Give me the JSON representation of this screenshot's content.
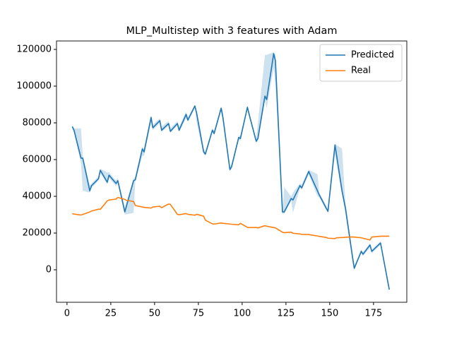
{
  "chart_data": {
    "type": "line",
    "title": "MLP_Multistep with 3 features with Adam",
    "xlim": [
      -6,
      194
    ],
    "xticks": [
      0,
      25,
      50,
      75,
      100,
      125,
      150,
      175
    ],
    "ylim": [
      -17700,
      124600
    ],
    "yticks": [
      0,
      20000,
      40000,
      60000,
      80000,
      100000,
      120000
    ],
    "legend": "upper right",
    "series": [
      {
        "name": "Predicted",
        "color": "#1f77b4",
        "band_color": "#1f77b4",
        "x": [
          3,
          4,
          8,
          9,
          13,
          14,
          18,
          19,
          23,
          24,
          28,
          29,
          33,
          38,
          39,
          43,
          44,
          48,
          49,
          53,
          54,
          58,
          59,
          63,
          64,
          68,
          69,
          73,
          74,
          78,
          79,
          83,
          84,
          88,
          89,
          93,
          94,
          98,
          99,
          103,
          104,
          108,
          109,
          113,
          114,
          118,
          119,
          123,
          124,
          128,
          129,
          133,
          134,
          138,
          143,
          144,
          148,
          149,
          153,
          157,
          159,
          163,
          164,
          168,
          169,
          173,
          174,
          179,
          184
        ],
        "values": [
          78000,
          76000,
          60800,
          60800,
          43000,
          45800,
          49600,
          54200,
          47700,
          51500,
          47000,
          48500,
          31500,
          48500,
          49000,
          65800,
          64200,
          83000,
          77300,
          81200,
          76000,
          79600,
          75400,
          79600,
          76000,
          84600,
          81500,
          89200,
          85400,
          64200,
          63000,
          76000,
          74200,
          88000,
          83000,
          54600,
          56200,
          72000,
          71500,
          88500,
          84600,
          70000,
          71500,
          94600,
          92700,
          117700,
          113800,
          31500,
          31500,
          38800,
          38000,
          45800,
          44600,
          53500,
          43000,
          40800,
          33500,
          31900,
          68000,
          43000,
          33500,
          7000,
          800,
          10000,
          8500,
          13500,
          10000,
          14600,
          -10800
        ],
        "lower": [
          77000,
          74500,
          58000,
          43000,
          42000,
          44500,
          48500,
          52500,
          46500,
          50000,
          45500,
          47000,
          30000,
          31000,
          48000,
          62000,
          62000,
          80000,
          76000,
          80000,
          75000,
          78500,
          74500,
          78500,
          75000,
          82500,
          80500,
          88000,
          80000,
          63000,
          62000,
          75000,
          73000,
          86500,
          82000,
          53500,
          55000,
          70500,
          70500,
          87000,
          83500,
          69000,
          70000,
          92000,
          88000,
          110000,
          100000,
          30500,
          30500,
          37500,
          31000,
          44500,
          43500,
          52000,
          40000,
          39500,
          32500,
          30500,
          63000,
          41000,
          30000,
          4000,
          0,
          9000,
          7500,
          12000,
          9000,
          13500,
          -11500
        ],
        "upper": [
          79000,
          77000,
          77000,
          62000,
          46000,
          47000,
          51000,
          55000,
          53000,
          53000,
          48500,
          50000,
          34000,
          49500,
          51000,
          67000,
          66000,
          84000,
          79000,
          82500,
          78000,
          81000,
          77000,
          81000,
          78000,
          86000,
          83000,
          90000,
          86500,
          66000,
          64500,
          77000,
          76000,
          89000,
          86000,
          56000,
          58000,
          73000,
          73000,
          89500,
          86000,
          71500,
          80000,
          117000,
          117000,
          118500,
          117000,
          33000,
          45000,
          40000,
          42000,
          47000,
          46500,
          54500,
          52000,
          42000,
          35000,
          33000,
          68500,
          66000,
          36000,
          8000,
          2000,
          11000,
          9500,
          14500,
          11000,
          15500,
          -10000
        ]
      },
      {
        "name": "Real",
        "color": "#ff7f0e",
        "x": [
          3,
          8,
          13,
          14,
          18,
          19,
          23,
          24,
          28,
          29,
          33,
          34,
          38,
          39,
          43,
          44,
          48,
          49,
          53,
          54,
          58,
          59,
          63,
          64,
          68,
          69,
          73,
          74,
          78,
          79,
          83,
          84,
          88,
          89,
          93,
          94,
          98,
          99,
          103,
          104,
          108,
          109,
          113,
          114,
          118,
          119,
          123,
          124,
          128,
          129,
          133,
          134,
          138,
          139,
          143,
          144,
          148,
          149,
          153,
          154,
          158,
          159,
          163,
          164,
          168,
          169,
          173,
          174,
          178,
          179,
          184
        ],
        "values": [
          30500,
          29800,
          31500,
          32000,
          33000,
          32900,
          37500,
          38000,
          38500,
          39400,
          38300,
          37800,
          37200,
          35000,
          34200,
          34000,
          33600,
          34200,
          34600,
          33800,
          35800,
          35600,
          30200,
          30000,
          30600,
          30200,
          29700,
          30200,
          29200,
          27000,
          25000,
          24900,
          25500,
          25300,
          24900,
          24800,
          24500,
          25300,
          23100,
          23000,
          23000,
          22800,
          24000,
          23700,
          23000,
          22800,
          20500,
          20200,
          20500,
          19900,
          19500,
          19300,
          19200,
          19000,
          18400,
          18200,
          17600,
          17200,
          17000,
          17400,
          17600,
          17700,
          17900,
          17800,
          17400,
          17200,
          16200,
          17800,
          18200,
          18300,
          18300
        ]
      }
    ]
  }
}
